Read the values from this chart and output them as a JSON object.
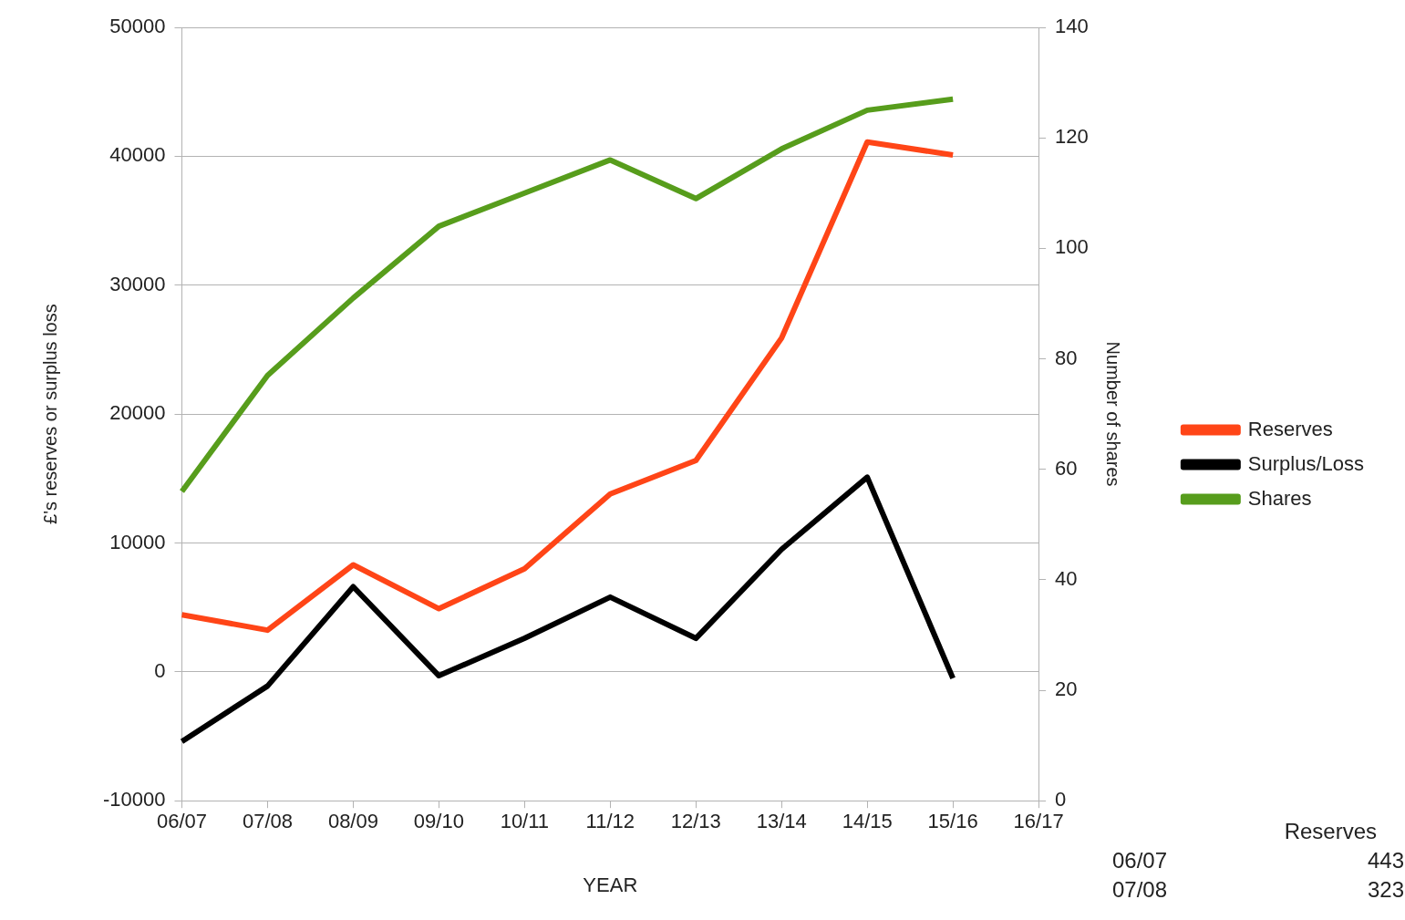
{
  "chart_data": {
    "type": "line",
    "xlabel": "YEAR",
    "ylabel": "£'s reserves or surplus loss",
    "y2label": "Number of shares",
    "categories": [
      "06/07",
      "07/08",
      "08/09",
      "09/10",
      "10/11",
      "11/12",
      "12/13",
      "13/14",
      "14/15",
      "15/16",
      "16/17"
    ],
    "series": [
      {
        "name": "Reserves",
        "color": "#ff4517",
        "values": [
          4430,
          3230,
          8300,
          4900,
          8000,
          13800,
          16400,
          25900,
          41100,
          40100,
          null
        ]
      },
      {
        "name": "Surplus/Loss",
        "color": "#000000",
        "values": [
          -5400,
          -1100,
          6600,
          -300,
          2600,
          5800,
          2600,
          9500,
          15100,
          -500,
          null
        ]
      },
      {
        "name": "Shares",
        "color": "#579d1c",
        "axis": "y2",
        "values": [
          56,
          77,
          91,
          104,
          110,
          116,
          109,
          118,
          125,
          127,
          null
        ]
      }
    ],
    "ylim": [
      -10000,
      50000
    ],
    "yticks": [
      -10000,
      0,
      10000,
      20000,
      30000,
      40000,
      50000
    ],
    "y2lim": [
      0,
      140
    ],
    "y2ticks": [
      0,
      20,
      40,
      60,
      80,
      100,
      120,
      140
    ],
    "grid": "y",
    "legend": "right",
    "marker": "none",
    "line_style": "solid",
    "annotations": [
      "Reserves",
      "06/07",
      "443",
      "07/08",
      "323"
    ]
  }
}
